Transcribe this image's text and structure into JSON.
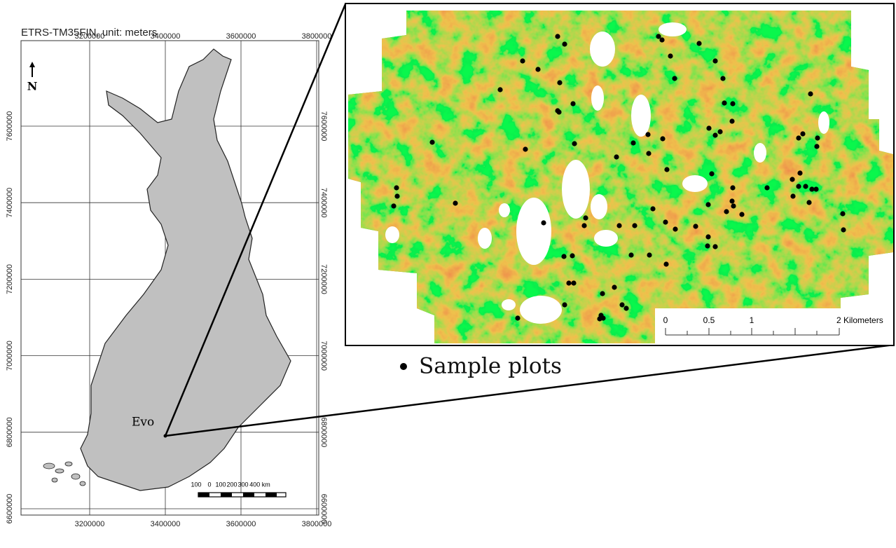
{
  "map": {
    "crs_label": "ETRS-TM35FIN, unit: meters",
    "xticks": [
      3200000,
      3400000,
      3600000,
      3800000
    ],
    "yticks": [
      7600000,
      7400000,
      7200000,
      7000000,
      6800000,
      6600000
    ],
    "north": "N",
    "site": "Evo",
    "scale_bar": [
      "100",
      "0",
      "100",
      "200",
      "300",
      "400 km"
    ]
  },
  "inset": {
    "scale_bar": [
      "0",
      "0.5",
      "1",
      "2 Kilometers"
    ]
  },
  "legend": {
    "label": "Sample plots"
  }
}
